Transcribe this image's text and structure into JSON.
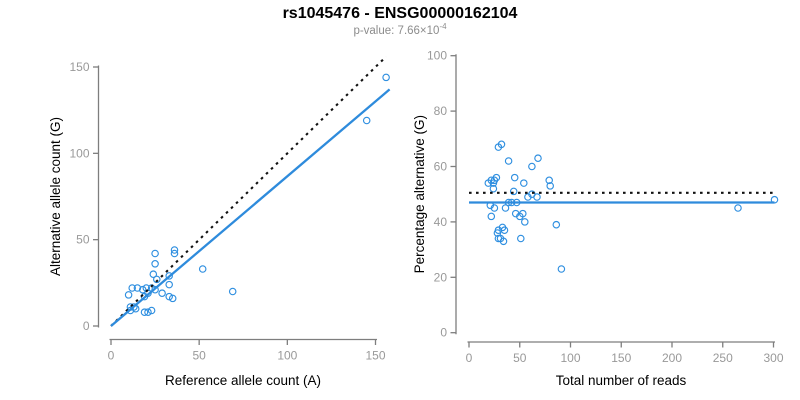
{
  "header": {
    "title": "rs1045476 - ENSG00000162104",
    "p_value_prefix": "p-value: 7.66×10",
    "p_value_exponent": "-4"
  },
  "colors": {
    "point_blue": "#2F8FE0",
    "line_blue": "#2E8BDC",
    "dotted_black": "#111111",
    "axis_gray": "#7E7E7E",
    "tick_label_gray": "#999999",
    "axis_title_black": "#000000",
    "subtitle_gray": "#8C8C8C"
  },
  "chart_data": [
    {
      "id": "allele-counts",
      "type": "scatter",
      "xlabel": "Reference allele count (A)",
      "ylabel": "Alternative allele count (G)",
      "xlim": [
        0,
        150
      ],
      "ylim": [
        0,
        150
      ],
      "xticks": [
        0,
        50,
        100,
        150
      ],
      "yticks": [
        0,
        50,
        100,
        150
      ],
      "grid": false,
      "legend": "none",
      "points": [
        [
          156,
          144
        ],
        [
          145,
          119
        ],
        [
          69,
          20
        ],
        [
          52,
          33
        ],
        [
          36,
          44
        ],
        [
          36,
          42
        ],
        [
          25,
          42
        ],
        [
          25,
          36
        ],
        [
          33,
          29
        ],
        [
          24,
          30
        ],
        [
          26,
          27
        ],
        [
          33,
          24
        ],
        [
          23,
          22
        ],
        [
          20,
          22
        ],
        [
          18,
          21
        ],
        [
          15,
          22
        ],
        [
          12,
          22
        ],
        [
          25,
          21
        ],
        [
          21,
          19
        ],
        [
          29,
          19
        ],
        [
          33,
          17
        ],
        [
          35,
          16
        ],
        [
          10,
          18
        ],
        [
          19,
          17
        ],
        [
          11,
          11
        ],
        [
          13,
          11
        ],
        [
          14,
          10
        ],
        [
          11,
          9
        ],
        [
          19,
          8
        ],
        [
          21,
          8
        ],
        [
          23,
          9
        ]
      ],
      "lines": [
        {
          "name": "identity-line",
          "style": "dotted",
          "from": [
            0,
            0
          ],
          "to": [
            156,
            156
          ],
          "color_key": "dotted_black"
        },
        {
          "name": "regression-line",
          "style": "solid",
          "from": [
            0,
            0
          ],
          "to": [
            158,
            137
          ],
          "color_key": "line_blue"
        }
      ]
    },
    {
      "id": "percentage-vs-reads",
      "type": "scatter",
      "xlabel": "Total number of reads",
      "ylabel": "Percentage alternative (G)",
      "xlim": [
        0,
        300
      ],
      "ylim": [
        0,
        100
      ],
      "xticks": [
        0,
        50,
        100,
        150,
        200,
        250,
        300
      ],
      "yticks": [
        0,
        20,
        40,
        60,
        80,
        100
      ],
      "grid": false,
      "legend": "none",
      "points": [
        [
          29,
          67
        ],
        [
          32,
          68
        ],
        [
          39,
          62
        ],
        [
          68,
          63
        ],
        [
          62,
          60
        ],
        [
          22,
          55
        ],
        [
          25,
          55
        ],
        [
          27,
          56
        ],
        [
          19,
          54
        ],
        [
          24,
          54
        ],
        [
          45,
          56
        ],
        [
          54,
          54
        ],
        [
          79,
          55
        ],
        [
          80,
          53
        ],
        [
          24,
          52
        ],
        [
          44,
          51
        ],
        [
          62,
          50
        ],
        [
          58,
          49
        ],
        [
          67,
          49
        ],
        [
          39,
          47
        ],
        [
          42,
          47
        ],
        [
          47,
          47
        ],
        [
          21,
          46
        ],
        [
          25,
          45
        ],
        [
          36,
          45
        ],
        [
          22,
          42
        ],
        [
          46,
          43
        ],
        [
          50,
          42
        ],
        [
          53,
          43
        ],
        [
          55,
          40
        ],
        [
          86,
          39
        ],
        [
          29,
          37
        ],
        [
          33,
          38
        ],
        [
          35,
          37
        ],
        [
          28,
          36
        ],
        [
          29,
          34
        ],
        [
          31,
          34
        ],
        [
          51,
          34
        ],
        [
          34,
          33
        ],
        [
          91,
          23
        ],
        [
          265,
          45
        ],
        [
          301,
          48
        ]
      ],
      "lines": [
        {
          "name": "expected-percentage-line",
          "style": "dotted",
          "from": [
            0,
            50.5
          ],
          "to": [
            300,
            50.5
          ],
          "color_key": "dotted_black"
        },
        {
          "name": "observed-percentage-line",
          "style": "solid",
          "from": [
            0,
            47
          ],
          "to": [
            301,
            47
          ],
          "color_key": "line_blue"
        }
      ]
    }
  ]
}
